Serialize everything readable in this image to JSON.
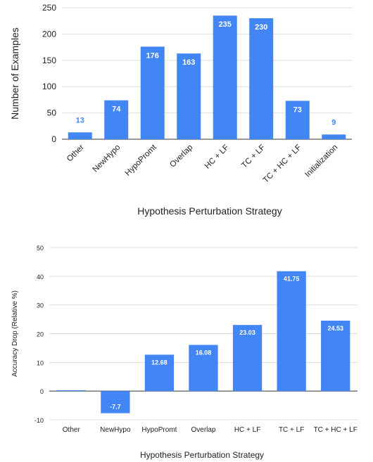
{
  "chart_data": [
    {
      "type": "bar",
      "categories": [
        "Other",
        "NewHypo",
        "HypoPromt",
        "Overlap",
        "HC + LF",
        "TC + LF",
        "TC + HC + LF",
        "Initialization"
      ],
      "values": [
        13,
        74,
        176,
        163,
        235,
        230,
        73,
        9
      ],
      "data_labels": [
        "13",
        "74",
        "176",
        "163",
        "235",
        "230",
        "73",
        "9"
      ],
      "title": "",
      "xlabel": "Hypothesis Perturbation Strategy",
      "ylabel": "Number of Examples",
      "ylim": [
        0,
        250
      ],
      "yticks": [
        0,
        50,
        100,
        150,
        200,
        250
      ],
      "grid": true,
      "legend": "none",
      "bar_color": "#4285F4",
      "tick_label_rotation": "-45deg"
    },
    {
      "type": "bar",
      "categories": [
        "Other",
        "NewHypo",
        "HypoPromt",
        "Overlap",
        "HC + LF",
        "TC + LF",
        "TC + HC + LF"
      ],
      "values": [
        0.3,
        -7.7,
        12.68,
        16.08,
        23.03,
        41.75,
        24.53
      ],
      "data_labels": [
        "",
        "-7.7",
        "12.68",
        "16.08",
        "23.03",
        "41.75",
        "24.53"
      ],
      "title": "",
      "xlabel": "Hypothesis Perturbation Strategy",
      "ylabel": "Accuracy Drop (Relative %)",
      "ylim": [
        -10,
        50
      ],
      "yticks": [
        -10,
        0,
        10,
        20,
        30,
        40,
        50
      ],
      "grid": true,
      "legend": "none",
      "bar_color": "#4285F4"
    }
  ]
}
